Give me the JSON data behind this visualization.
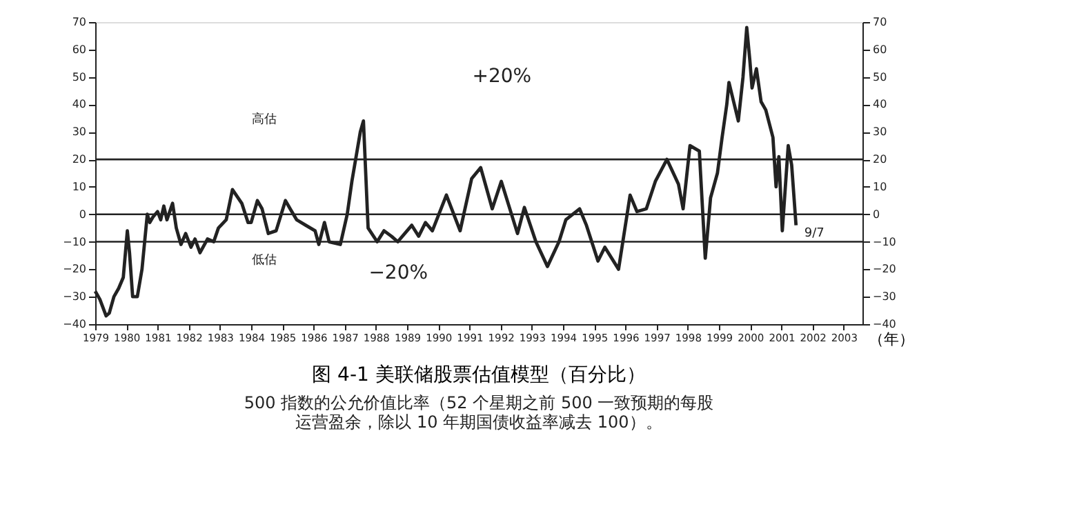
{
  "chart_data": {
    "type": "line",
    "title": "图 4-1  美联储股票估值模型（百分比）",
    "subtitle": "500 指数的公允价值比率（52 个星期之前 500 一致预期的每股运营盈余，除以 10 年期国债收益率减去 100）。",
    "xlabel": "（年）",
    "x": [
      1979.0,
      1979.15,
      1979.35,
      1979.45,
      1979.6,
      1979.75,
      1979.9,
      1980.03,
      1980.1,
      1980.2,
      1980.35,
      1980.5,
      1980.67,
      1980.75,
      1980.85,
      1981.0,
      1981.1,
      1981.2,
      1981.3,
      1981.48,
      1981.6,
      1981.75,
      1981.9,
      1982.07,
      1982.2,
      1982.36,
      1982.6,
      1982.8,
      1982.95,
      1983.2,
      1983.4,
      1983.7,
      1983.9,
      1984.0,
      1984.2,
      1984.35,
      1984.55,
      1984.8,
      1985.1,
      1985.25,
      1985.46,
      1985.75,
      1986.05,
      1986.17,
      1986.35,
      1986.5,
      1986.86,
      1987.08,
      1987.23,
      1987.5,
      1987.6,
      1987.75,
      1988.04,
      1988.26,
      1988.5,
      1988.7,
      1989.15,
      1989.37,
      1989.59,
      1989.81,
      1990.26,
      1990.7,
      1991.07,
      1991.36,
      1991.73,
      1992.02,
      1992.54,
      1992.76,
      1993.13,
      1993.5,
      1993.87,
      1994.09,
      1994.53,
      1994.75,
      1995.12,
      1995.34,
      1995.78,
      1996.15,
      1996.37,
      1996.67,
      1996.96,
      1997.33,
      1997.7,
      1997.85,
      1998.07,
      1998.37,
      1998.56,
      1998.73,
      1998.95,
      1999.1,
      1999.25,
      1999.32,
      1999.47,
      1999.62,
      1999.77,
      1999.89,
      1999.99,
      2000.06,
      2000.2,
      2000.35,
      2000.5,
      2000.73,
      2000.83,
      2000.92,
      2001.03,
      2001.22,
      2001.33,
      2001.47
    ],
    "series": [
      {
        "color": "#222222",
        "values": [
          -28,
          -31,
          -37,
          -36,
          -30,
          -27,
          -23,
          -6,
          -14,
          -30,
          -30,
          -20,
          0,
          -3,
          -1,
          1,
          -2,
          3,
          -2,
          4,
          -5,
          -11,
          -7,
          -12,
          -9,
          -14,
          -9,
          -10,
          -5,
          -2,
          9,
          4,
          -3,
          -3,
          5,
          2,
          -7,
          -6,
          5,
          2,
          -2,
          -4,
          -6,
          -11,
          -3,
          -10,
          -11,
          0,
          12,
          30,
          34,
          -5,
          -10,
          -6,
          -8,
          -10,
          -4,
          -8,
          -3,
          -6,
          7,
          -6,
          13,
          17,
          2,
          12,
          -7,
          2.5,
          -10,
          -19,
          -10,
          -2,
          2,
          -4,
          -17,
          -12,
          -20,
          7,
          1,
          2,
          12,
          20,
          11,
          2,
          25,
          23,
          -16,
          6,
          15,
          28,
          40,
          48,
          41,
          34,
          50,
          68,
          56,
          46,
          53,
          41,
          38,
          28,
          10,
          21,
          -6,
          25,
          18,
          -4
        ]
      }
    ],
    "xlim": [
      1979,
      2003.6
    ],
    "xticks": [
      1979,
      1980,
      1981,
      1982,
      1983,
      1984,
      1985,
      1986,
      1987,
      1988,
      1989,
      1990,
      1991,
      1992,
      1993,
      1994,
      1995,
      1996,
      1997,
      1998,
      1999,
      2000,
      2001,
      2002,
      2003
    ],
    "ylim": [
      -40,
      70
    ],
    "yticks": [
      -40,
      -30,
      -20,
      -10,
      0,
      10,
      20,
      30,
      40,
      50,
      60,
      70
    ],
    "y2lim": [
      -40,
      70
    ],
    "y2ticks": [
      -40,
      -30,
      -20,
      -10,
      0,
      10,
      20,
      30,
      40,
      50,
      60,
      70
    ],
    "ref_lines": [
      {
        "axis": "y",
        "value": 20
      },
      {
        "axis": "y",
        "value": 0
      },
      {
        "axis": "y",
        "value": -10
      }
    ],
    "annotations": [
      "高估",
      "低估",
      "+20%",
      "−20%",
      {
        "text": "9/7",
        "x": 2001.47,
        "y": -4
      }
    ],
    "grid": false,
    "marker": "none",
    "line_style": "solid"
  }
}
